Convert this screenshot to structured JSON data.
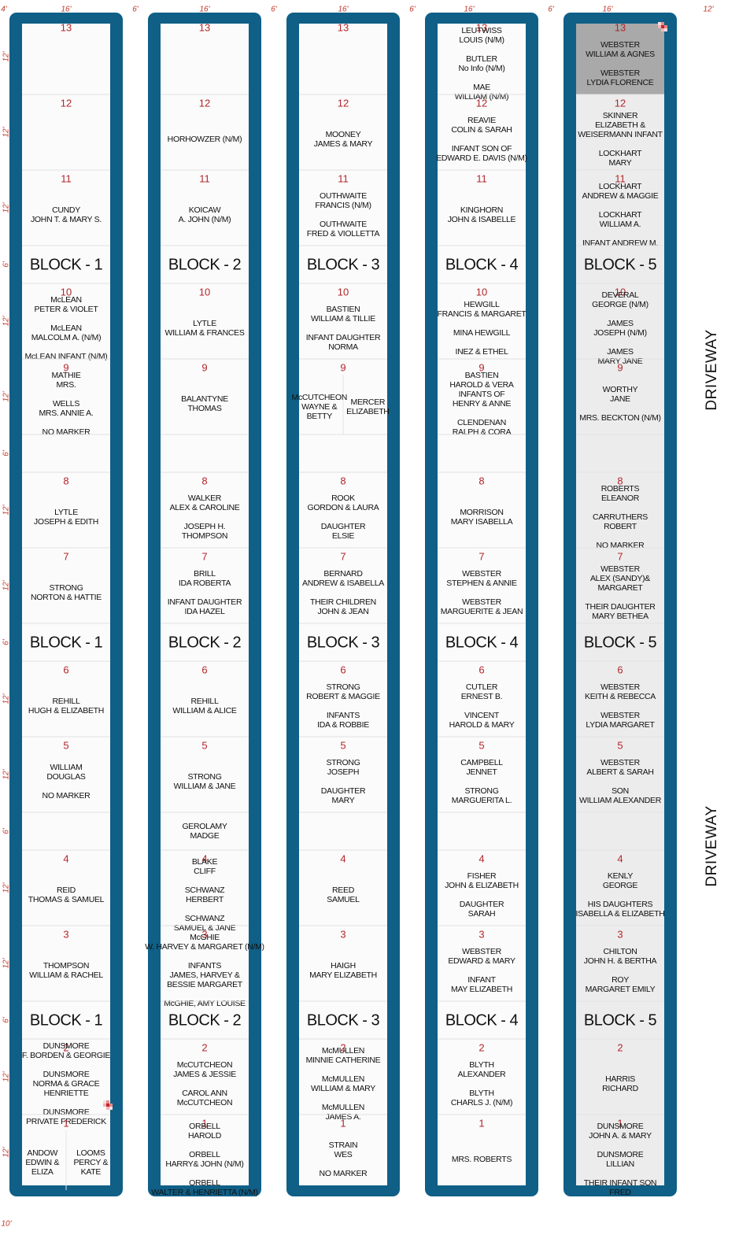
{
  "top_dimensions": [
    "4'",
    "16'",
    "6'",
    "16'",
    "6'",
    "16'",
    "6'",
    "16'",
    "6'",
    "16'",
    "12'"
  ],
  "side_dimensions": [
    "12'",
    "12'",
    "12'",
    "6'",
    "12'",
    "12'",
    "6'",
    "12'",
    "12'",
    "6'",
    "12'",
    "12'",
    "6'",
    "12'",
    "12'",
    "6'",
    "12'",
    "12'"
  ],
  "bottom_dimension": "10'",
  "driveway": "DRIVEWAY",
  "blocks": [
    {
      "label": "BLOCK - 1",
      "plots": [
        {
          "number": "13",
          "entries": []
        },
        {
          "number": "12",
          "entries": []
        },
        {
          "number": "11",
          "entries": [
            [
              "CUNDY",
              "JOHN T. & MARY S."
            ]
          ]
        },
        {
          "number": "10",
          "entries": [
            [
              "McLEAN",
              "PETER & VIOLET"
            ],
            [
              "McLEAN",
              "MALCOLM A. (N/M)"
            ],
            [
              "McLEAN INFANT (N/M)"
            ]
          ]
        },
        {
          "number": "9",
          "entries": [
            [
              "MATHIE",
              "MRS."
            ],
            [
              "WELLS",
              "MRS. ANNIE A."
            ],
            [
              "NO MARKER"
            ]
          ]
        },
        {
          "entries": []
        },
        {
          "number": "8",
          "entries": [
            [
              "LYTLE",
              "JOSEPH & EDITH"
            ]
          ]
        },
        {
          "number": "7",
          "entries": [
            [
              "STRONG",
              "NORTON & HATTIE"
            ]
          ]
        },
        {
          "number": "6",
          "entries": [
            [
              "REHILL",
              "HUGH & ELIZABETH"
            ]
          ]
        },
        {
          "number": "5",
          "entries": [
            [
              "WILLIAM",
              "DOUGLAS"
            ],
            [
              "NO MARKER"
            ]
          ]
        },
        {
          "entries": []
        },
        {
          "number": "4",
          "entries": [
            [
              "REID",
              "THOMAS & SAMUEL"
            ]
          ]
        },
        {
          "number": "3",
          "entries": [
            [
              "THOMPSON",
              "WILLIAM & RACHEL"
            ]
          ]
        },
        {
          "number": "2",
          "entries": [
            [
              "DUNSMORE",
              "F. BORDEN & GEORGIE"
            ],
            [
              "DUNSMORE",
              "NORMA & GRACE",
              "HENRIETTE"
            ],
            [
              "DUNSMORE",
              "PRIVATE FREDERICK"
            ]
          ]
        },
        {
          "number": "1",
          "sides": [
            {
              "entries": [
                [
                  "ANDOW",
                  "EDWIN &",
                  "ELIZA"
                ]
              ]
            },
            {
              "entries": [
                [
                  "LOOMS",
                  "PERCY &",
                  "KATE"
                ]
              ]
            }
          ]
        }
      ]
    },
    {
      "label": "BLOCK - 2",
      "plots": [
        {
          "number": "13",
          "entries": []
        },
        {
          "number": "12",
          "entries": [
            [
              "HORHOWZER (N/M)"
            ]
          ]
        },
        {
          "number": "11",
          "entries": [
            [
              "KOICAW",
              "A. JOHN (N/M)"
            ]
          ]
        },
        {
          "number": "10",
          "entries": [
            [
              "LYTLE",
              "WILLIAM & FRANCES"
            ]
          ]
        },
        {
          "number": "9",
          "entries": [
            [
              "BALANTYNE",
              "THOMAS"
            ]
          ]
        },
        {
          "entries": []
        },
        {
          "number": "8",
          "entries": [
            [
              "WALKER",
              "ALEX & CAROLINE"
            ],
            [
              "JOSEPH H.",
              "THOMPSON"
            ]
          ]
        },
        {
          "number": "7",
          "entries": [
            [
              "BRILL",
              "IDA ROBERTA"
            ],
            [
              "INFANT DAUGHTER",
              "IDA HAZEL"
            ]
          ]
        },
        {
          "number": "6",
          "entries": [
            [
              "REHILL",
              "WILLIAM & ALICE"
            ]
          ]
        },
        {
          "number": "5",
          "entries": [
            [
              "STRONG",
              "WILLIAM & JANE"
            ]
          ]
        },
        {
          "entries": [
            [
              "GEROLAMY",
              "MADGE"
            ]
          ]
        },
        {
          "number": "4",
          "entries": [
            [
              "BLAKE",
              "CLIFF"
            ],
            [
              "SCHWANZ",
              "HERBERT"
            ],
            [
              "SCHWANZ",
              "SAMUEL & JANE"
            ]
          ]
        },
        {
          "number": "3",
          "entries": [
            [
              "McGHIE",
              "W. HARVEY & MARGARET (N/M)"
            ],
            [
              "INFANTS",
              "JAMES, HARVEY &",
              "BESSIE MARGARET"
            ],
            [
              "McGHIE, AMY LOUISE"
            ]
          ]
        },
        {
          "number": "2",
          "entries": [
            [
              "McCUTCHEON",
              "JAMES & JESSIE"
            ],
            [
              "CAROL ANN",
              "McCUTCHEON"
            ]
          ]
        },
        {
          "number": "1",
          "entries": [
            [
              "ORBELL",
              "HAROLD"
            ],
            [
              "ORBELL",
              "HARRY& JOHN (N/M)"
            ],
            [
              "ORBELL",
              "WALTER & HENRIETTA (N/M)"
            ]
          ]
        }
      ]
    },
    {
      "label": "BLOCK - 3",
      "plots": [
        {
          "number": "13",
          "entries": []
        },
        {
          "number": "12",
          "entries": [
            [
              "MOONEY",
              "JAMES & MARY"
            ]
          ]
        },
        {
          "number": "11",
          "entries": [
            [
              "OUTHWAITE",
              "FRANCIS (N/M)"
            ],
            [
              "OUTHWAITE",
              "FRED & VIOLLETTA"
            ]
          ]
        },
        {
          "number": "10",
          "entries": [
            [
              "BASTIEN",
              "WILLIAM & TILLIE"
            ],
            [
              "INFANT DAUGHTER",
              "NORMA"
            ]
          ]
        },
        {
          "number": "9",
          "sides": [
            {
              "entries": [
                [
                  "McCUTCHEON",
                  "WAYNE &",
                  "BETTY"
                ]
              ]
            },
            {
              "entries": [
                [
                  "MERCER",
                  "ELIZABETH"
                ]
              ]
            }
          ]
        },
        {
          "entries": []
        },
        {
          "number": "8",
          "entries": [
            [
              "ROOK",
              "GORDON & LAURA"
            ],
            [
              "DAUGHTER",
              "ELSIE"
            ]
          ]
        },
        {
          "number": "7",
          "entries": [
            [
              "BERNARD",
              "ANDREW & ISABELLA"
            ],
            [
              "THEIR CHILDREN",
              "JOHN & JEAN"
            ]
          ]
        },
        {
          "number": "6",
          "entries": [
            [
              "STRONG",
              "ROBERT & MAGGIE"
            ],
            [
              "INFANTS",
              "IDA & ROBBIE"
            ]
          ]
        },
        {
          "number": "5",
          "entries": [
            [
              "STRONG",
              "JOSEPH"
            ],
            [
              "DAUGHTER",
              "MARY"
            ]
          ]
        },
        {
          "entries": []
        },
        {
          "number": "4",
          "entries": [
            [
              "REED",
              "SAMUEL"
            ]
          ]
        },
        {
          "number": "3",
          "entries": [
            [
              "HAIGH",
              "MARY ELIZABETH"
            ]
          ]
        },
        {
          "number": "2",
          "entries": [
            [
              "McMULLEN",
              "MINNIE CATHERINE"
            ],
            [
              "McMULLEN",
              "WILLIAM & MARY"
            ],
            [
              "McMULLEN",
              "JAMES A."
            ]
          ]
        },
        {
          "number": "1",
          "entries": [
            [
              "STRAIN",
              "WES"
            ],
            [
              "NO MARKER"
            ]
          ]
        }
      ]
    },
    {
      "label": "BLOCK - 4",
      "plots": [
        {
          "number": "13",
          "entries": [
            [
              "LEUTWISS",
              "LOUIS (N/M)"
            ],
            [
              "BUTLER",
              "No Info (N/M)"
            ],
            [
              "MAE",
              "WILLIAM (N/M)"
            ]
          ]
        },
        {
          "number": "12",
          "entries": [
            [
              "REAVIE",
              "COLIN & SARAH"
            ],
            [
              "INFANT SON OF",
              "EDWARD E. DAVIS (N/M)"
            ]
          ]
        },
        {
          "number": "11",
          "entries": [
            [
              "KINGHORN",
              "JOHN & ISABELLE"
            ]
          ]
        },
        {
          "number": "10",
          "entries": [
            [
              "HEWGILL",
              "FRANCIS & MARGARET"
            ],
            [
              "MINA HEWGILL"
            ],
            [
              "INEZ & ETHEL"
            ]
          ]
        },
        {
          "number": "9",
          "entries": [
            [
              "BASTIEN",
              "HAROLD & VERA",
              "INFANTS OF",
              "HENRY & ANNE"
            ],
            [
              "CLENDENAN",
              "RALPH & CORA"
            ]
          ]
        },
        {
          "entries": []
        },
        {
          "number": "8",
          "entries": [
            [
              "MORRISON",
              "MARY ISABELLA"
            ]
          ]
        },
        {
          "number": "7",
          "entries": [
            [
              "WEBSTER",
              "STEPHEN & ANNIE"
            ],
            [
              "WEBSTER",
              "MARGUERITE & JEAN"
            ]
          ]
        },
        {
          "number": "6",
          "entries": [
            [
              "CUTLER",
              "ERNEST B."
            ],
            [
              "VINCENT",
              "HAROLD & MARY"
            ]
          ]
        },
        {
          "number": "5",
          "entries": [
            [
              "CAMPBELL",
              "JENNET"
            ],
            [
              "STRONG",
              "MARGUERITA L."
            ]
          ]
        },
        {
          "entries": []
        },
        {
          "number": "4",
          "entries": [
            [
              "FISHER",
              "JOHN & ELIZABETH"
            ],
            [
              "DAUGHTER",
              "SARAH"
            ]
          ]
        },
        {
          "number": "3",
          "entries": [
            [
              "WEBSTER",
              "EDWARD & MARY"
            ],
            [
              "INFANT",
              "MAY ELIZABETH"
            ]
          ]
        },
        {
          "number": "2",
          "entries": [
            [
              "BLYTH",
              "ALEXANDER"
            ],
            [
              "BLYTH",
              "CHARLS J. (N/M)"
            ]
          ]
        },
        {
          "number": "1",
          "entries": [
            [
              "MRS. ROBERTS"
            ]
          ]
        }
      ]
    },
    {
      "label": "BLOCK - 5",
      "plots": [
        {
          "number": "13",
          "entries": [
            [
              "WEBSTER",
              "WILLIAM & AGNES"
            ],
            [
              "WEBSTER",
              "LYDIA FLORENCE"
            ]
          ]
        },
        {
          "number": "12",
          "entries": [
            [
              "SKINNER",
              "ELIZABETH &",
              "WEISERMANN INFANT"
            ],
            [
              "LOCKHART",
              "MARY"
            ]
          ]
        },
        {
          "number": "11",
          "entries": [
            [
              "LOCKHART",
              "ANDREW & MAGGIE"
            ],
            [
              "LOCKHART",
              "WILLIAM A."
            ],
            [
              "INFANT ANDREW M."
            ]
          ]
        },
        {
          "number": "10",
          "entries": [
            [
              "DEVERAL",
              "GEORGE (N/M)"
            ],
            [
              "JAMES",
              "JOSEPH (N/M)"
            ],
            [
              "JAMES",
              "MARY JANE"
            ]
          ]
        },
        {
          "number": "9",
          "entries": [
            [
              "WORTHY",
              "JANE"
            ],
            [
              "MRS. BECKTON (N/M)"
            ]
          ]
        },
        {
          "entries": []
        },
        {
          "number": "8",
          "entries": [
            [
              "ROBERTS",
              "ELEANOR"
            ],
            [
              "CARRUTHERS",
              "ROBERT"
            ],
            [
              "NO MARKER"
            ]
          ]
        },
        {
          "number": "7",
          "entries": [
            [
              "WEBSTER",
              "ALEX (SANDY)&",
              "MARGARET"
            ],
            [
              "THEIR DAUGHTER",
              "MARY BETHEA"
            ]
          ]
        },
        {
          "number": "6",
          "entries": [
            [
              "WEBSTER",
              "KEITH & REBECCA"
            ],
            [
              "WEBSTER",
              "LYDIA MARGARET"
            ]
          ]
        },
        {
          "number": "5",
          "entries": [
            [
              "WEBSTER",
              "ALBERT & SARAH"
            ],
            [
              "SON",
              "WILLIAM ALEXANDER"
            ]
          ]
        },
        {
          "entries": []
        },
        {
          "number": "4",
          "entries": [
            [
              "KENLY",
              "GEORGE"
            ],
            [
              "HIS DAUGHTERS",
              "ISABELLA & ELIZABETH"
            ]
          ]
        },
        {
          "number": "3",
          "entries": [
            [
              "CHILTON",
              "JOHN H. & BERTHA"
            ],
            [
              "ROY",
              "MARGARET EMILY"
            ]
          ]
        },
        {
          "number": "2",
          "entries": [
            [
              "HARRIS",
              "RICHARD"
            ]
          ]
        },
        {
          "number": "1",
          "entries": [
            [
              "DUNSMORE",
              "JOHN A. & MARY"
            ],
            [
              "DUNSMORE",
              "LILLIAN"
            ],
            [
              "THEIR INFANT SON",
              "FRED"
            ]
          ]
        }
      ]
    }
  ]
}
